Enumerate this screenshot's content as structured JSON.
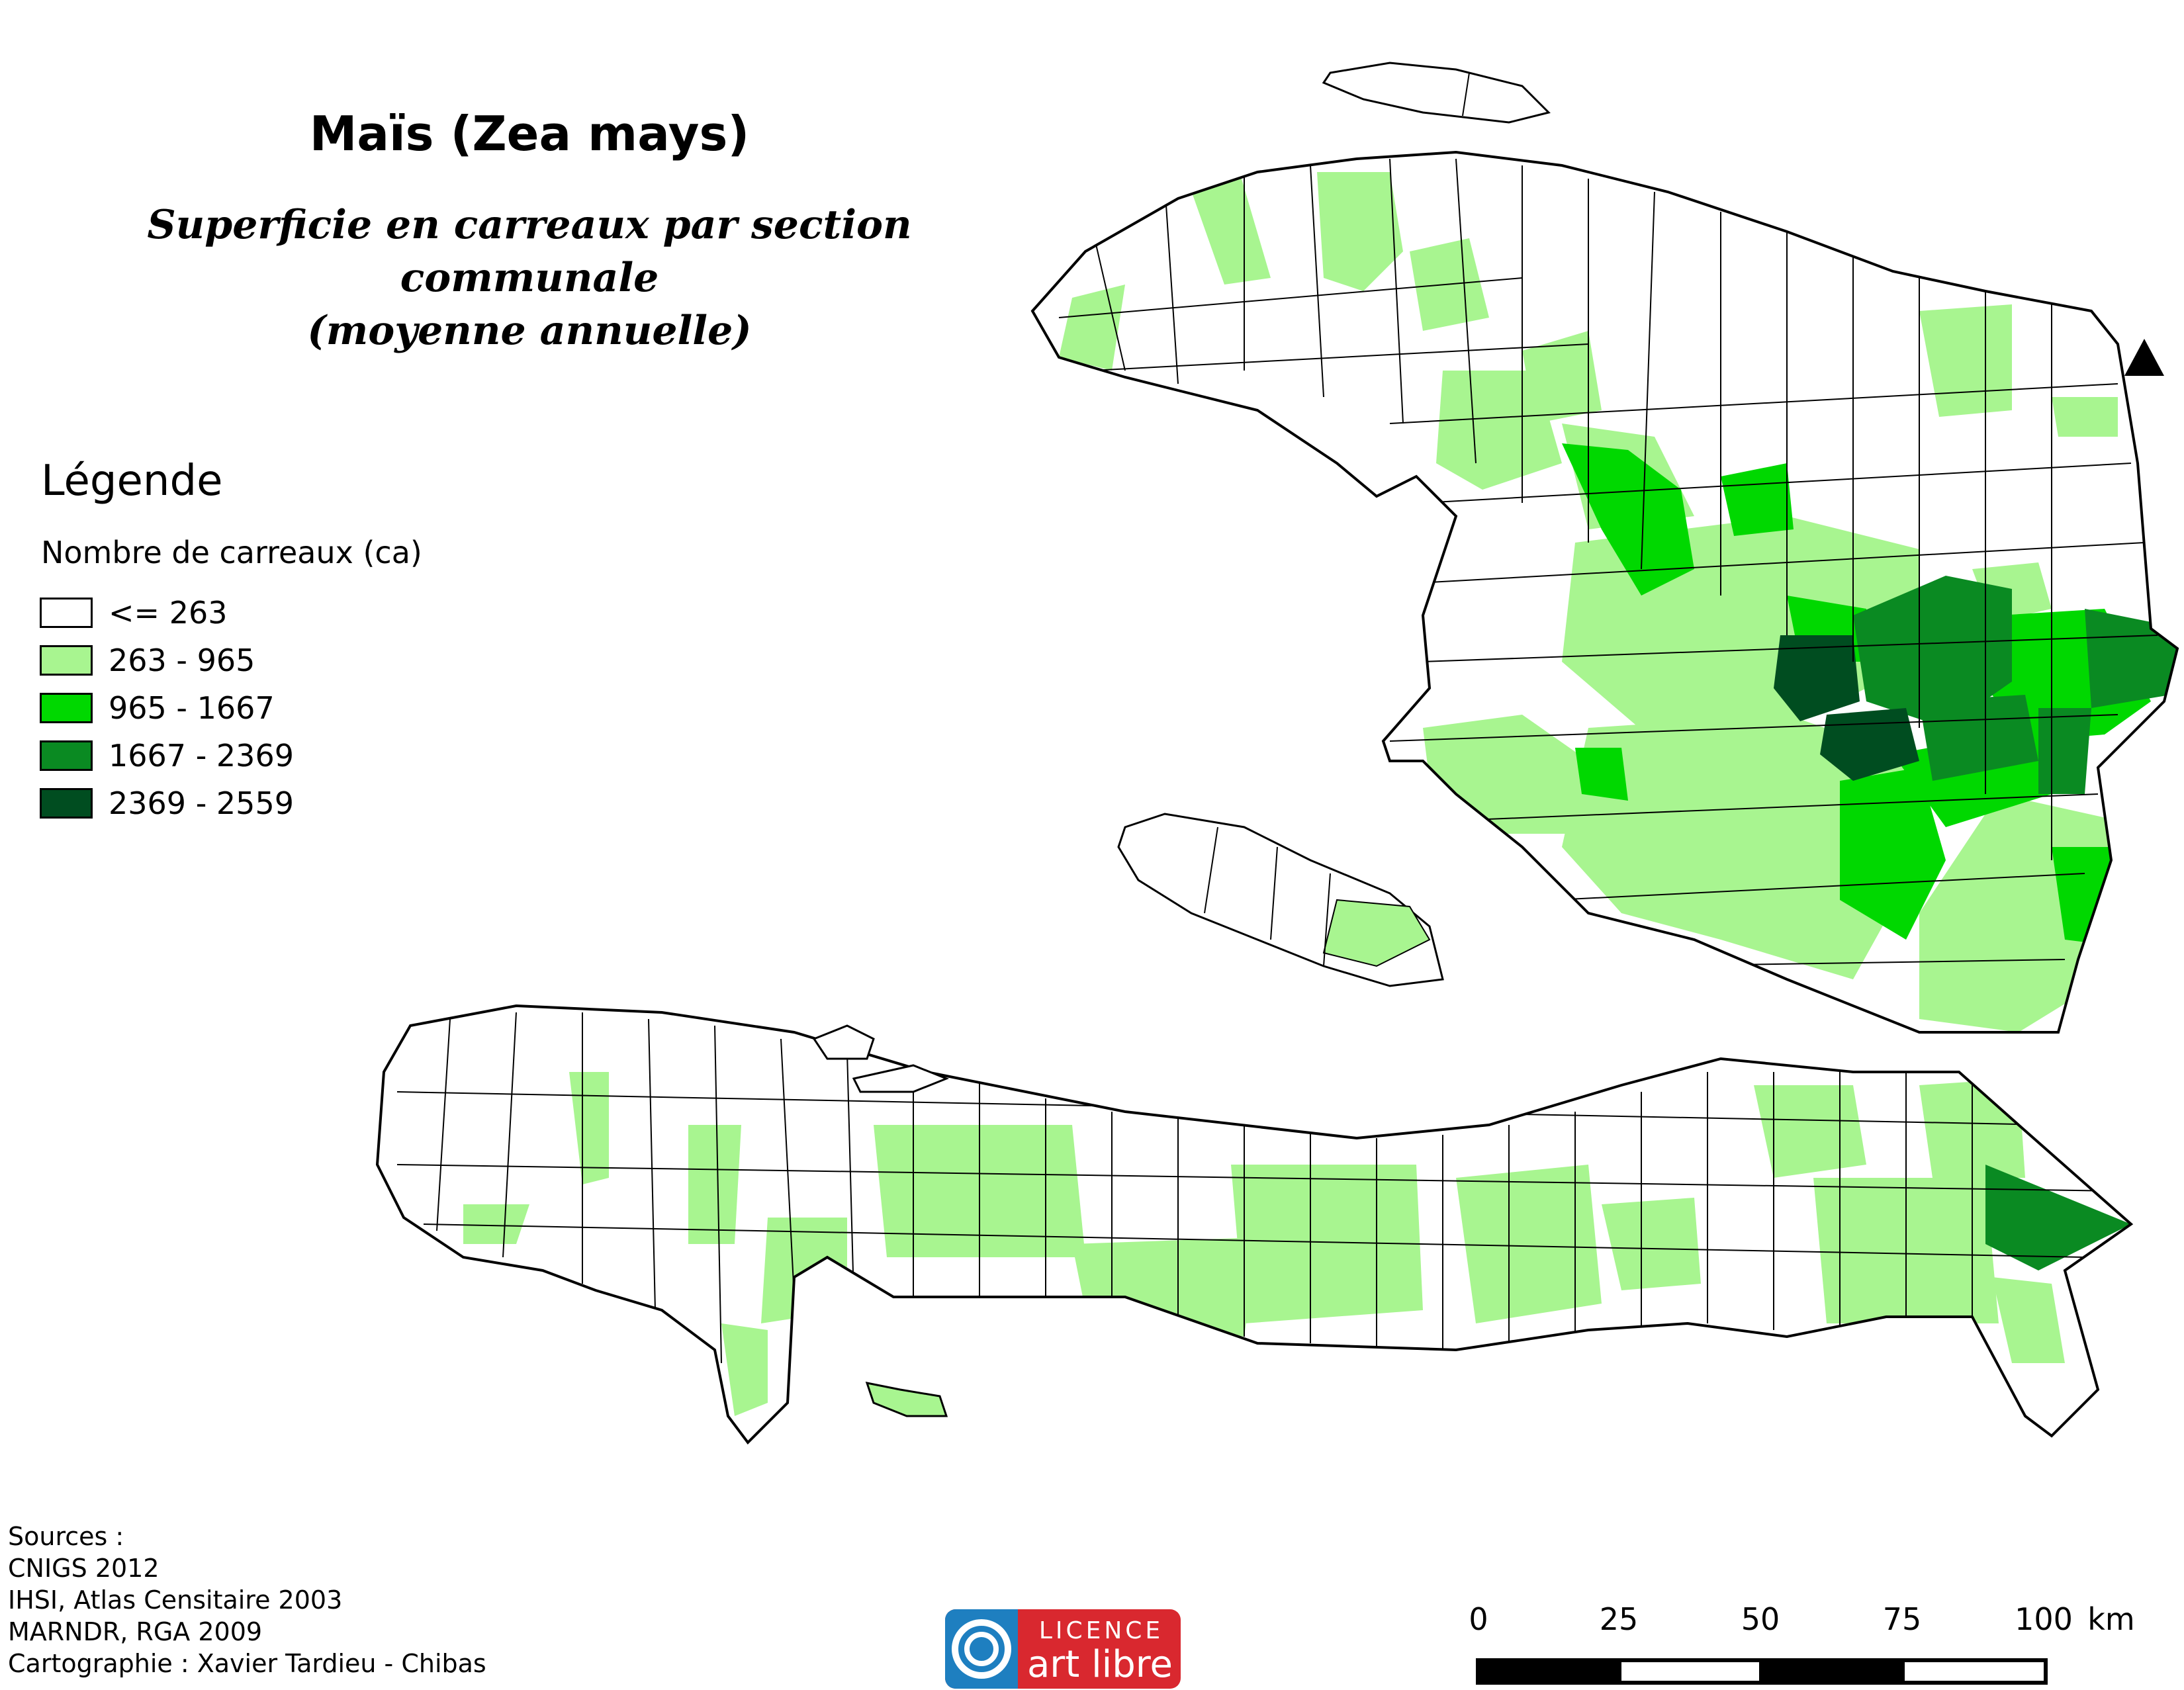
{
  "map": {
    "title": "Maïs (Zea mays)",
    "subtitle_lines": [
      "Superficie en carreaux par section communale",
      "(moyenne annuelle)"
    ]
  },
  "legend": {
    "title": "Légende",
    "subtitle": "Nombre de carreaux (ca)",
    "classes": [
      {
        "label": "<= 263",
        "color": "#ffffff"
      },
      {
        "label": "263 - 965",
        "color": "#a8f590"
      },
      {
        "label": "965 - 1667",
        "color": "#00d800"
      },
      {
        "label": "1667 - 2369",
        "color": "#0a8a22"
      },
      {
        "label": "2369 - 2559",
        "color": "#004d20"
      }
    ]
  },
  "sources": {
    "lines": [
      "Sources :",
      "CNIGS 2012",
      "IHSI, Atlas Censitaire 2003",
      "MARNDR, RGA 2009",
      "Cartographie : Xavier Tardieu - Chibas"
    ]
  },
  "logo": {
    "top_text": "LICENCE",
    "bottom_text": "art libre",
    "color_blue": "#1e7fc0",
    "color_red": "#d9282f"
  },
  "scale_bar": {
    "ticks": [
      "0",
      "25",
      "50",
      "75",
      "100"
    ],
    "unit": "km"
  },
  "north_arrow": {
    "icon": "north-arrow-triangle-icon"
  }
}
